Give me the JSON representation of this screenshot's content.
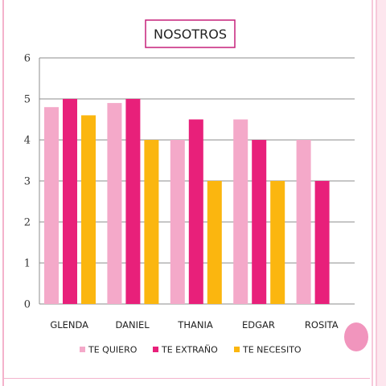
{
  "colors": {
    "te_quiero": "#f4a9c9",
    "te_extrano": "#e8207a",
    "te_necesito": "#fbb60f",
    "grid": "#8c8c8c",
    "title_border": "#c5207a"
  },
  "chart_data": {
    "type": "bar",
    "title": "NOSOTROS",
    "categories": [
      "GLENDA",
      "DANIEL",
      "THANIA",
      "EDGAR",
      "ROSITA"
    ],
    "series": [
      {
        "name": "TE QUIERO",
        "values": [
          4.8,
          4.9,
          4.0,
          4.5,
          4.0
        ]
      },
      {
        "name": "TE EXTRAÑO",
        "values": [
          5.0,
          5.0,
          4.5,
          4.0,
          3.0
        ]
      },
      {
        "name": "TE NECESITO",
        "values": [
          4.6,
          4.0,
          3.0,
          3.0,
          null
        ]
      }
    ],
    "yticks": [
      "0",
      "1",
      "2",
      "3",
      "4",
      "5",
      "6"
    ],
    "ylim": [
      0,
      6
    ],
    "grid": true,
    "legend_position": "bottom"
  }
}
